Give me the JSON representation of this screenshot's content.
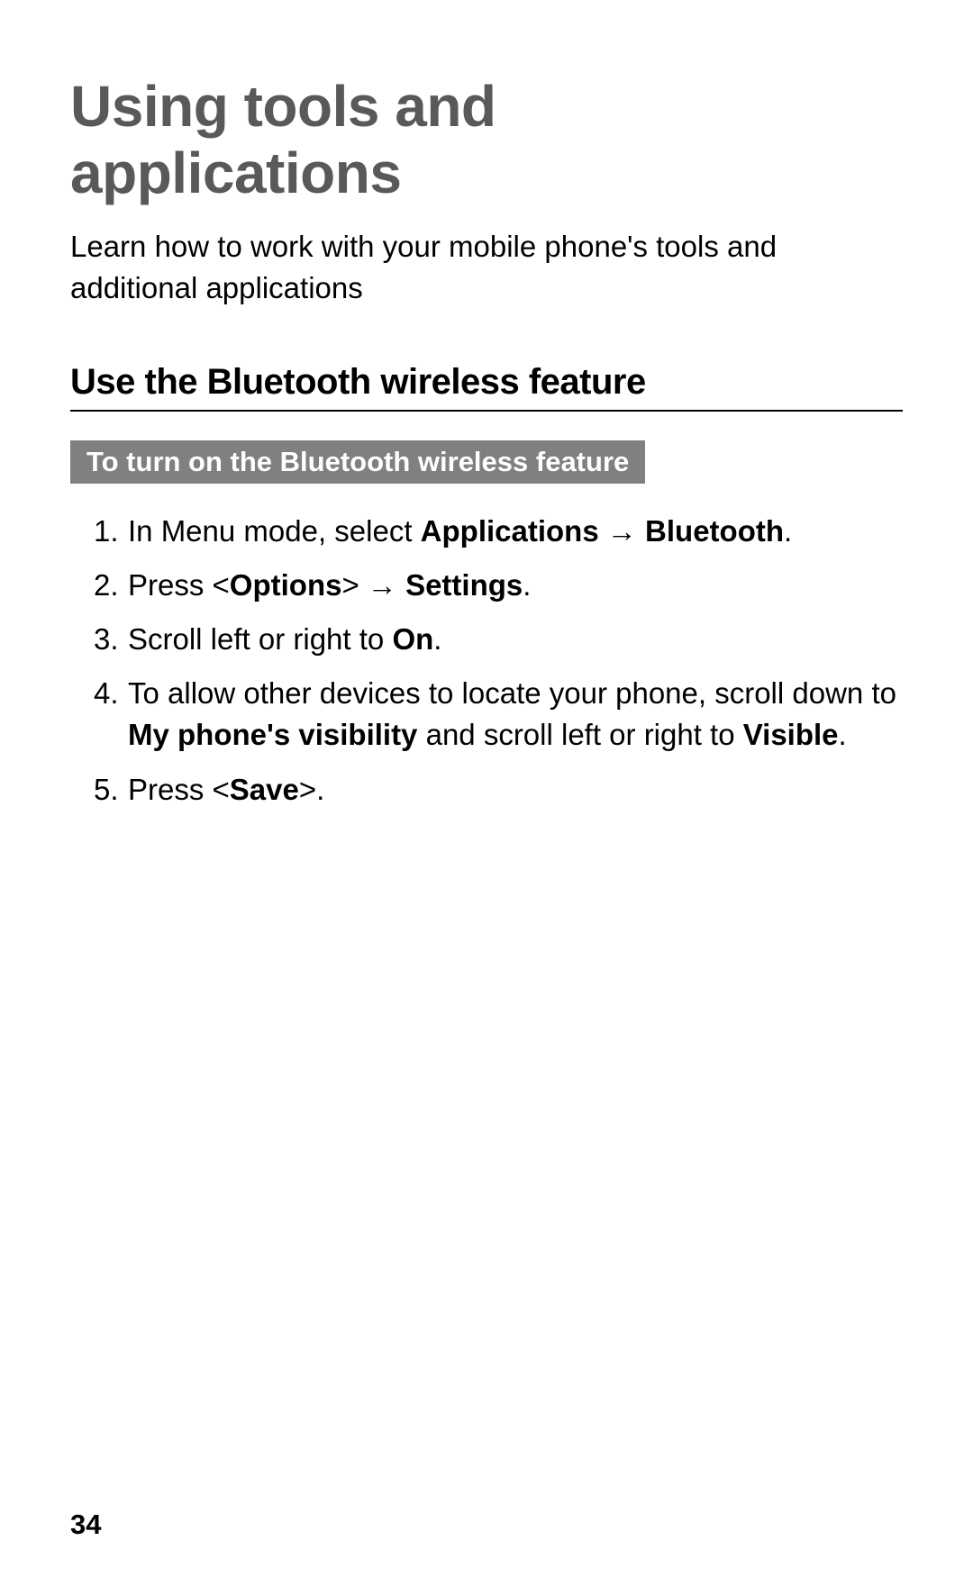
{
  "page": {
    "background_color": "#ffffff",
    "text_color": "#000000",
    "title_color": "#595959",
    "callout_bg": "#808080",
    "callout_fg": "#ffffff",
    "font_family": "Arial, Helvetica, sans-serif"
  },
  "header": {
    "title_line1": "Using tools and",
    "title_line2": "applications",
    "subtitle": "Learn how to work with your mobile phone's tools and additional applications"
  },
  "section": {
    "heading": "Use the Bluetooth wireless feature",
    "callout": "To turn on the Bluetooth wireless feature"
  },
  "steps": [
    {
      "prefix": "In Menu mode, select ",
      "bold1": "Applications",
      "mid": " → ",
      "bold2": "Bluetooth",
      "suffix": "."
    },
    {
      "prefix": "Press <",
      "bold1": "Options",
      "mid": "> → ",
      "bold2": "Settings",
      "suffix": "."
    },
    {
      "prefix": "Scroll left or right to ",
      "bold1": "On",
      "mid": "",
      "bold2": "",
      "suffix": "."
    },
    {
      "prefix": "To allow other devices to locate your phone, scroll down to ",
      "bold1": "My phone's visibility",
      "mid": " and scroll left or right to ",
      "bold2": "Visible",
      "suffix": "."
    },
    {
      "prefix": "Press <",
      "bold1": "Save",
      "mid": "",
      "bold2": "",
      "suffix": ">."
    }
  ],
  "footer": {
    "page_number": "34"
  }
}
